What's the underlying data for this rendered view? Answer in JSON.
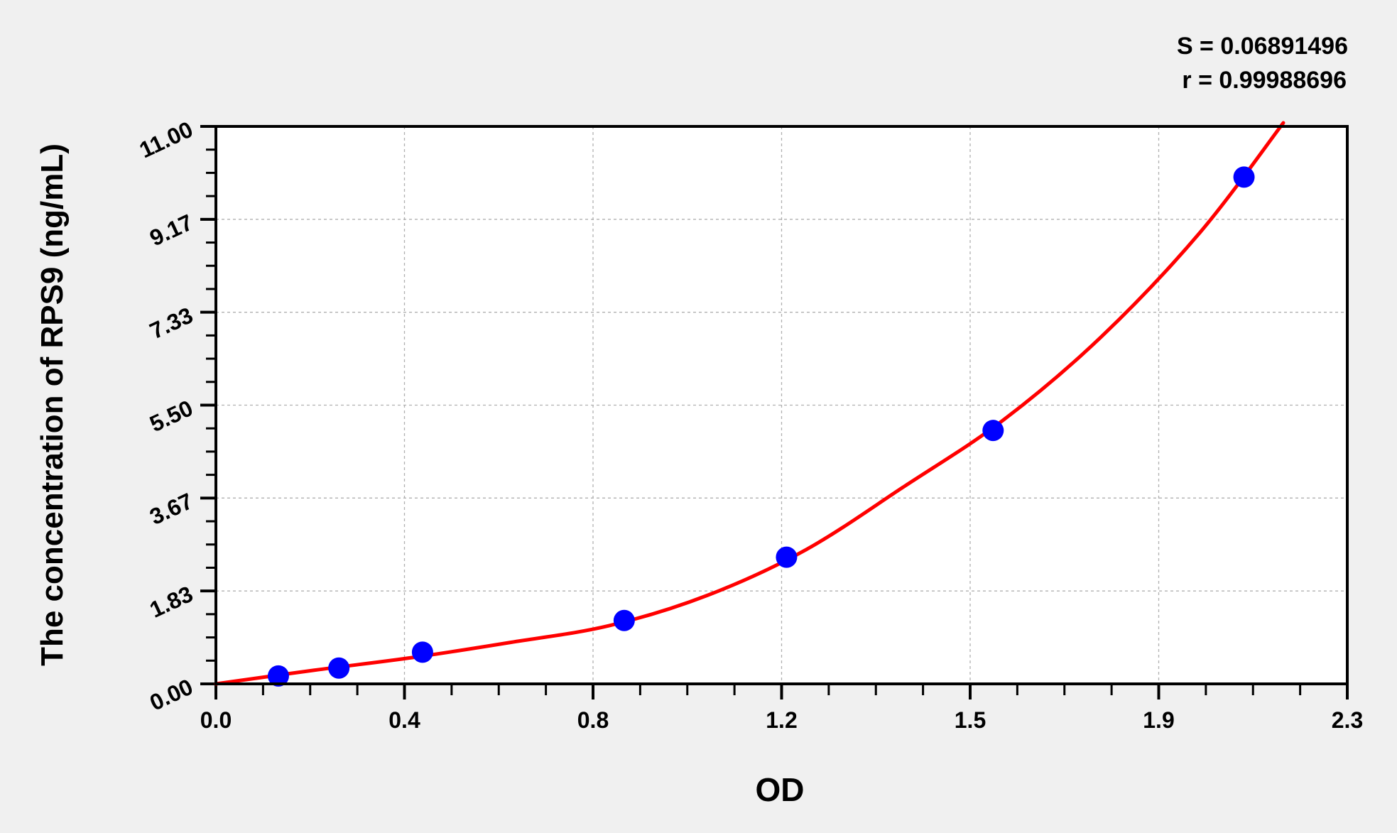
{
  "chart_data": {
    "type": "scatter",
    "xlabel": "OD",
    "ylabel": "The concentration of RPS9 (ng/mL)",
    "annotations": [
      "S = 0.06891496",
      "r = 0.99988696"
    ],
    "xlim": [
      0.0,
      2.3
    ],
    "ylim": [
      0.0,
      11.0
    ],
    "x_tick_labels": [
      "0.0",
      "0.4",
      "0.8",
      "1.2",
      "1.5",
      "1.9",
      "2.3"
    ],
    "y_tick_labels": [
      "0.00",
      "1.83",
      "3.67",
      "5.50",
      "7.33",
      "9.17",
      "11.00"
    ],
    "grid": true,
    "points": {
      "x": [
        0.127,
        0.25,
        0.42,
        0.83,
        1.16,
        1.58,
        2.09
      ],
      "y": [
        0.156,
        0.312,
        0.625,
        1.25,
        2.5,
        5.0,
        10.0
      ]
    },
    "fit_curve": {
      "x": [
        0.0,
        0.2,
        0.4,
        0.6,
        0.8,
        1.0,
        1.2,
        1.4,
        1.6,
        1.8,
        2.0,
        2.17
      ],
      "y": [
        0.0,
        0.27,
        0.52,
        0.82,
        1.15,
        1.75,
        2.65,
        3.9,
        5.2,
        6.85,
        8.9,
        11.07
      ]
    },
    "colors": {
      "points": "#0000ff",
      "curve": "#ff0000",
      "background": "#f0f0f0",
      "plot": "#ffffff"
    }
  }
}
